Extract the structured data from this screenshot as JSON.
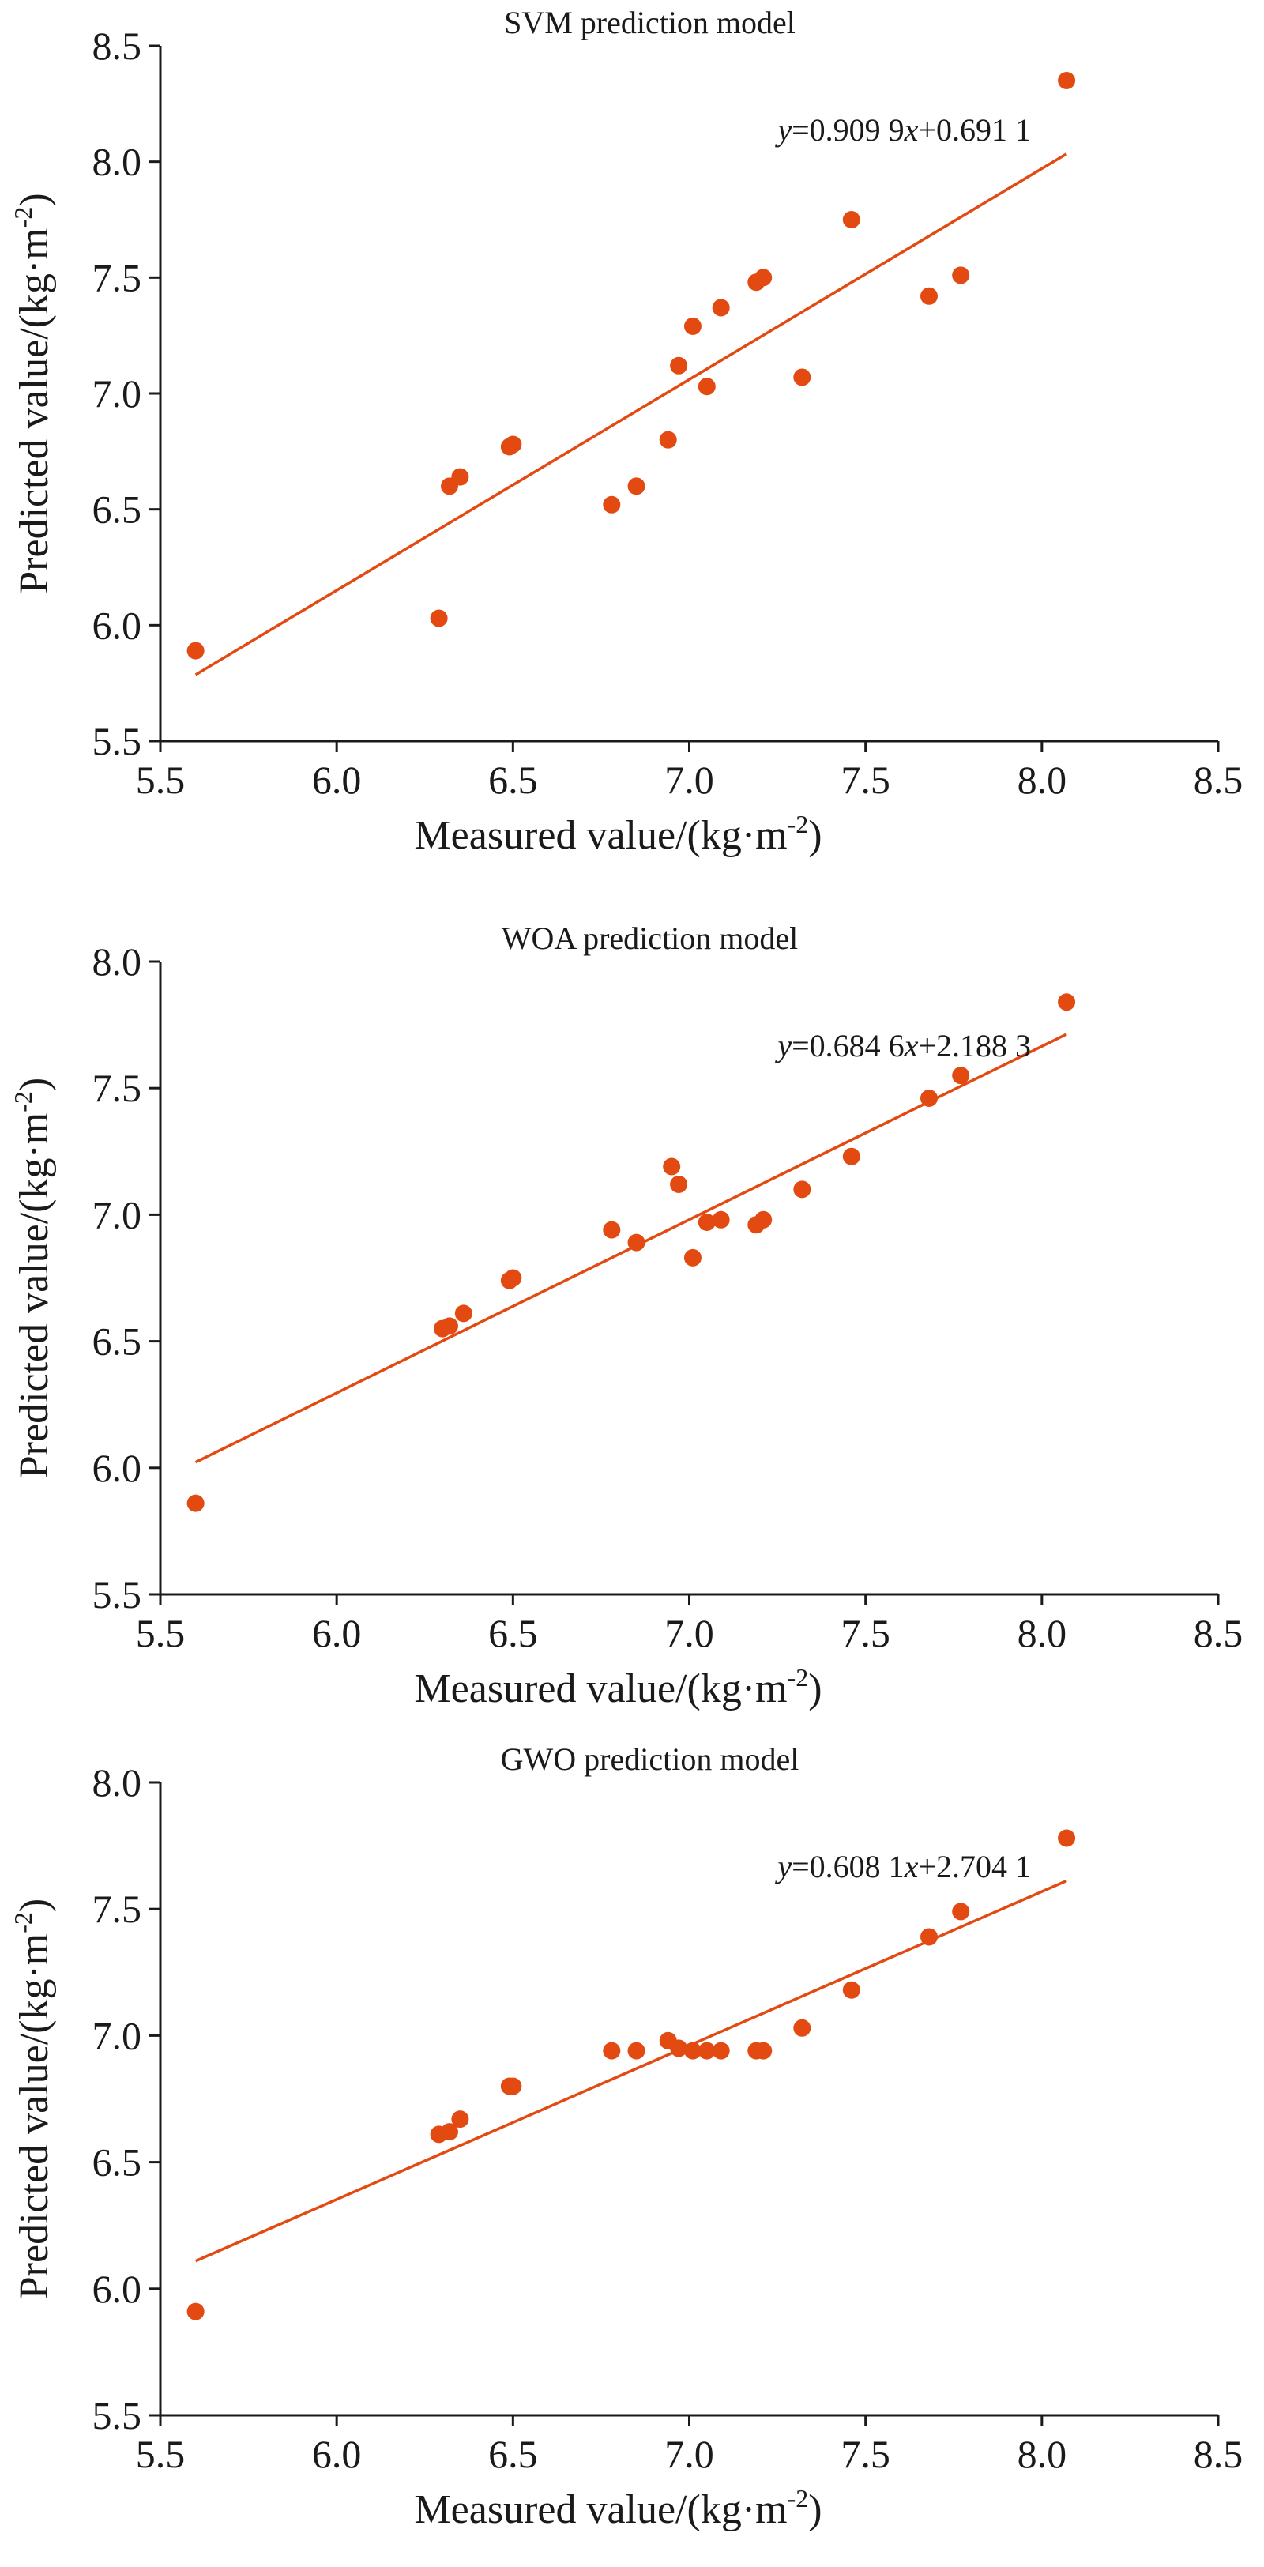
{
  "colors": {
    "marker": "#e34a12",
    "fit_line": "#e34a12",
    "axis": "#1a1a1a"
  },
  "chart_data": [
    {
      "type": "scatter",
      "title": "SVM prediction model",
      "xlabel": "Measured value/(kg·m",
      "xlabel_sup": "-2",
      "xlabel_tail": ")",
      "ylabel": "Predicted value/(kg·m",
      "ylabel_sup": "-2",
      "ylabel_tail": ")",
      "xlim": [
        5.5,
        8.5
      ],
      "ylim": [
        5.5,
        8.5
      ],
      "xticks": [
        "5.5",
        "6.0",
        "6.5",
        "7.0",
        "7.5",
        "8.0",
        "8.5"
      ],
      "yticks": [
        "5.5",
        "6.0",
        "6.5",
        "7.0",
        "7.5",
        "8.0",
        "8.5"
      ],
      "grid": false,
      "legend": "none",
      "equation": {
        "y": "y",
        "mid": "=0.909 9",
        "x": "x",
        "tail": "+0.691 1"
      },
      "fit": {
        "slope": 0.9099,
        "intercept": 0.6911,
        "x_range": [
          5.6,
          8.07
        ]
      },
      "series": [
        {
          "x": [
            5.6,
            6.29,
            6.32,
            6.35,
            6.49,
            6.5,
            6.78,
            6.85,
            6.94,
            6.97,
            7.01,
            7.05,
            7.09,
            7.19,
            7.21,
            7.32,
            7.46,
            7.68,
            7.77,
            8.07
          ],
          "y": [
            5.89,
            6.03,
            6.6,
            6.64,
            6.77,
            6.78,
            6.52,
            6.6,
            6.8,
            7.12,
            7.29,
            7.03,
            7.37,
            7.48,
            7.5,
            7.07,
            7.75,
            7.42,
            7.51,
            8.35
          ]
        }
      ]
    },
    {
      "type": "scatter",
      "title": "WOA prediction model",
      "xlabel": "Measured value/(kg·m",
      "xlabel_sup": "-2",
      "xlabel_tail": ")",
      "ylabel": "Predicted value/(kg·m",
      "ylabel_sup": "-2",
      "ylabel_tail": ")",
      "xlim": [
        5.5,
        8.5
      ],
      "ylim": [
        5.5,
        8.0
      ],
      "xticks": [
        "5.5",
        "6.0",
        "6.5",
        "7.0",
        "7.5",
        "8.0",
        "8.5"
      ],
      "yticks": [
        "5.5",
        "6.0",
        "6.5",
        "7.0",
        "7.5",
        "8.0"
      ],
      "grid": false,
      "legend": "none",
      "equation": {
        "y": "y",
        "mid": "=0.684 6",
        "x": "x",
        "tail": "+2.188 3"
      },
      "fit": {
        "slope": 0.6846,
        "intercept": 2.1883,
        "x_range": [
          5.6,
          8.07
        ]
      },
      "series": [
        {
          "x": [
            5.6,
            6.3,
            6.32,
            6.36,
            6.49,
            6.5,
            6.78,
            6.85,
            6.95,
            6.97,
            7.01,
            7.05,
            7.09,
            7.19,
            7.21,
            7.32,
            7.46,
            7.68,
            7.77,
            8.07
          ],
          "y": [
            5.86,
            6.55,
            6.56,
            6.61,
            6.74,
            6.75,
            6.94,
            6.89,
            7.19,
            7.12,
            6.83,
            6.97,
            6.98,
            6.96,
            6.98,
            7.1,
            7.23,
            7.46,
            7.55,
            7.84
          ]
        }
      ]
    },
    {
      "type": "scatter",
      "title": "GWO prediction model",
      "xlabel": "Measured value/(kg·m",
      "xlabel_sup": "-2",
      "xlabel_tail": ")",
      "ylabel": "Predicted value/(kg·m",
      "ylabel_sup": "-2",
      "ylabel_tail": ")",
      "xlim": [
        5.5,
        8.5
      ],
      "ylim": [
        5.5,
        8.0
      ],
      "xticks": [
        "5.5",
        "6.0",
        "6.5",
        "7.0",
        "7.5",
        "8.0",
        "8.5"
      ],
      "yticks": [
        "5.5",
        "6.0",
        "6.5",
        "7.0",
        "7.5",
        "8.0"
      ],
      "grid": false,
      "legend": "none",
      "equation": {
        "y": "y",
        "mid": "=0.608 1",
        "x": "x",
        "tail": "+2.704 1"
      },
      "fit": {
        "slope": 0.6081,
        "intercept": 2.7041,
        "x_range": [
          5.6,
          8.07
        ]
      },
      "series": [
        {
          "x": [
            5.6,
            6.29,
            6.32,
            6.35,
            6.49,
            6.5,
            6.78,
            6.85,
            6.94,
            6.97,
            7.01,
            7.05,
            7.09,
            7.19,
            7.21,
            7.32,
            7.46,
            7.68,
            7.77,
            8.07
          ],
          "y": [
            5.91,
            6.61,
            6.62,
            6.67,
            6.8,
            6.8,
            6.94,
            6.94,
            6.98,
            6.95,
            6.94,
            6.94,
            6.94,
            6.94,
            6.94,
            7.03,
            7.18,
            7.39,
            7.49,
            7.78
          ]
        }
      ]
    }
  ]
}
